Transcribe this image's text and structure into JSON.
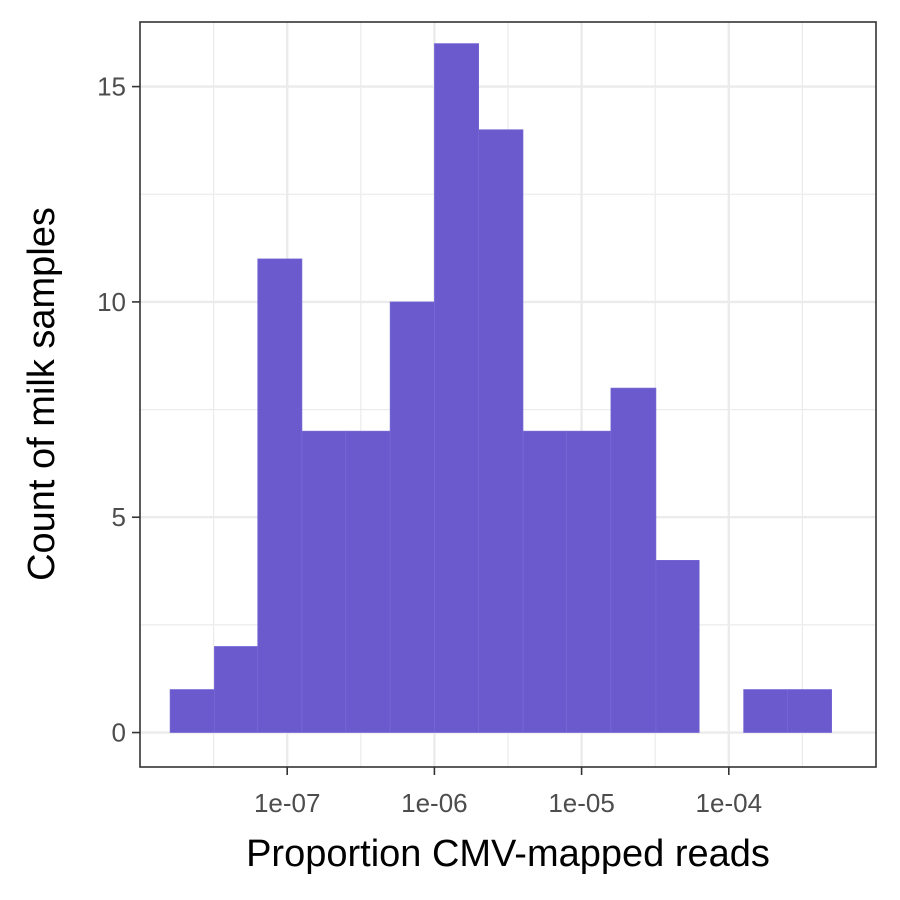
{
  "chart_data": {
    "type": "bar",
    "title": "",
    "xlabel": "Proportion CMV-mapped reads",
    "ylabel": "Count of milk samples",
    "x_scale": "log10",
    "xlim": [
      1e-08,
      0.001
    ],
    "ylim": [
      0,
      16.5
    ],
    "grid": true,
    "bar_color": "#6A5ACD",
    "x_ticks": [
      {
        "value": 1e-07,
        "label": "1e-07"
      },
      {
        "value": 1e-06,
        "label": "1e-06"
      },
      {
        "value": 1e-05,
        "label": "1e-05"
      },
      {
        "value": 0.0001,
        "label": "1e-04"
      }
    ],
    "y_ticks": [
      {
        "value": 0,
        "label": "0"
      },
      {
        "value": 5,
        "label": "5"
      },
      {
        "value": 10,
        "label": "10"
      },
      {
        "value": 15,
        "label": "15"
      }
    ],
    "bins": [
      {
        "x0": 1.6e-08,
        "x1": 3.2e-08,
        "count": 1
      },
      {
        "x0": 3.2e-08,
        "x1": 6.3e-08,
        "count": 2
      },
      {
        "x0": 6.3e-08,
        "x1": 1.26e-07,
        "count": 11
      },
      {
        "x0": 1.26e-07,
        "x1": 2.5e-07,
        "count": 7
      },
      {
        "x0": 2.5e-07,
        "x1": 5e-07,
        "count": 7
      },
      {
        "x0": 5e-07,
        "x1": 1e-06,
        "count": 10
      },
      {
        "x0": 1e-06,
        "x1": 2e-06,
        "count": 16
      },
      {
        "x0": 2e-06,
        "x1": 4e-06,
        "count": 14
      },
      {
        "x0": 4e-06,
        "x1": 7.9e-06,
        "count": 7
      },
      {
        "x0": 7.9e-06,
        "x1": 1.58e-05,
        "count": 7
      },
      {
        "x0": 1.58e-05,
        "x1": 3.2e-05,
        "count": 8
      },
      {
        "x0": 3.2e-05,
        "x1": 6.3e-05,
        "count": 4
      },
      {
        "x0": 6.3e-05,
        "x1": 0.000126,
        "count": 0
      },
      {
        "x0": 0.000126,
        "x1": 0.00025,
        "count": 1
      },
      {
        "x0": 0.00025,
        "x1": 0.0005,
        "count": 1
      }
    ]
  }
}
